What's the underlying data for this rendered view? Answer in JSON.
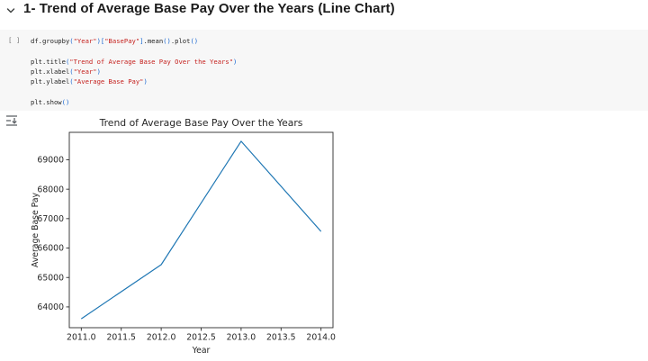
{
  "header": {
    "title": "1- Trend of Average Base Pay Over the Years (Line Chart)",
    "collapse_icon": "chevron-down"
  },
  "code_cell": {
    "prompt": "[ ]",
    "language": "python",
    "lines": [
      {
        "segments": [
          {
            "text": "df.groupby",
            "type": "plain"
          },
          {
            "text": "(",
            "type": "bracket"
          },
          {
            "text": "\"Year\"",
            "type": "string"
          },
          {
            "text": ")[",
            "type": "bracket"
          },
          {
            "text": "\"BasePay\"",
            "type": "string"
          },
          {
            "text": "]",
            "type": "bracket"
          },
          {
            "text": ".mean",
            "type": "plain"
          },
          {
            "text": "()",
            "type": "bracket"
          },
          {
            "text": ".plot",
            "type": "plain"
          },
          {
            "text": "()",
            "type": "bracket"
          }
        ]
      },
      {
        "segments": []
      },
      {
        "segments": [
          {
            "text": "plt.title",
            "type": "plain"
          },
          {
            "text": "(",
            "type": "bracket"
          },
          {
            "text": "\"Trend of Average Base Pay Over the Years\"",
            "type": "string"
          },
          {
            "text": ")",
            "type": "bracket"
          }
        ]
      },
      {
        "segments": [
          {
            "text": "plt.xlabel",
            "type": "plain"
          },
          {
            "text": "(",
            "type": "bracket"
          },
          {
            "text": "\"Year\"",
            "type": "string"
          },
          {
            "text": ")",
            "type": "bracket"
          }
        ]
      },
      {
        "segments": [
          {
            "text": "plt.ylabel",
            "type": "plain"
          },
          {
            "text": "(",
            "type": "bracket"
          },
          {
            "text": "\"Average Base Pay\"",
            "type": "string"
          },
          {
            "text": ")",
            "type": "bracket"
          }
        ]
      },
      {
        "segments": []
      },
      {
        "segments": [
          {
            "text": "plt.show",
            "type": "plain"
          },
          {
            "text": "()",
            "type": "bracket"
          }
        ]
      }
    ]
  },
  "output": {
    "expand_icon": "expand-output"
  },
  "chart_data": {
    "type": "line",
    "title": "Trend of Average Base Pay Over the Years",
    "xlabel": "Year",
    "ylabel": "Average Base Pay",
    "x": [
      2011,
      2012,
      2013,
      2014
    ],
    "y": [
      63596,
      65436,
      69630,
      66564
    ],
    "xlim": [
      2010.85,
      2014.15
    ],
    "ylim": [
      63294,
      69932
    ],
    "xticks": [
      2011.0,
      2011.5,
      2012.0,
      2012.5,
      2013.0,
      2013.5,
      2014.0
    ],
    "xtick_labels": [
      "2011.0",
      "2011.5",
      "2012.0",
      "2012.5",
      "2013.0",
      "2013.5",
      "2014.0"
    ],
    "yticks": [
      64000,
      65000,
      66000,
      67000,
      68000,
      69000
    ],
    "ytick_labels": [
      "64000",
      "65000",
      "66000",
      "67000",
      "68000",
      "69000"
    ],
    "line_color": "#1f77b4",
    "grid": false,
    "legend": null
  },
  "colors": {
    "cell_background": "#f7f7f7",
    "code_string": "#c5221f",
    "code_bracket": "#1967d2",
    "series_line": "#1f77b4",
    "chart_text": "#262626"
  }
}
